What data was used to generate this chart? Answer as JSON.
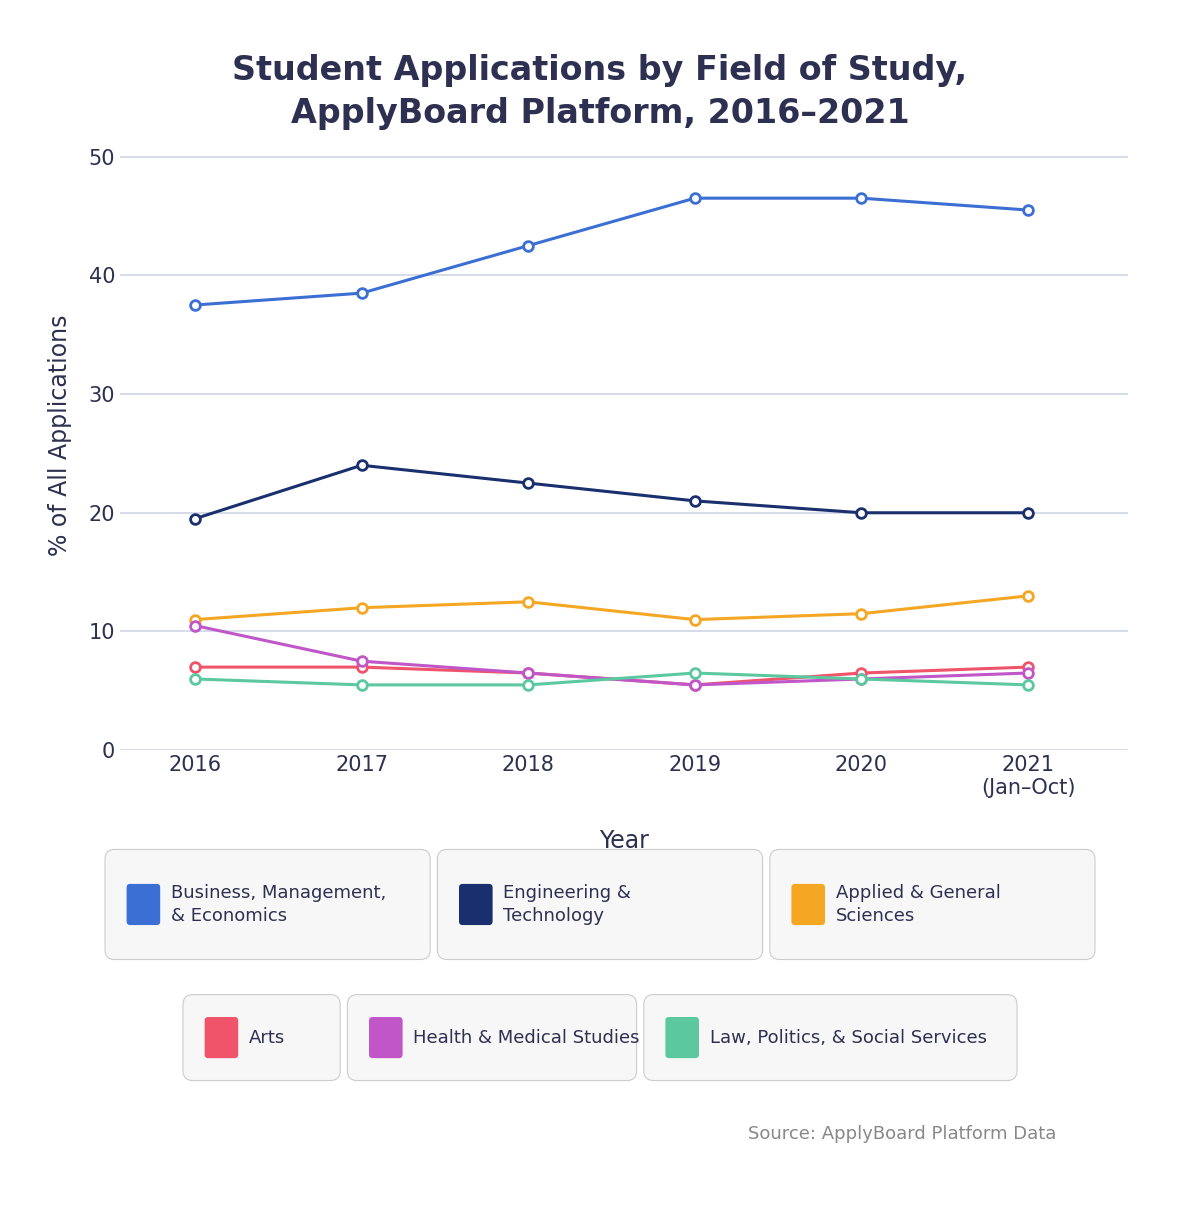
{
  "title": "Student Applications by Field of Study,\nApplyBoard Platform, 2016–2021",
  "years": [
    2016,
    2017,
    2018,
    2019,
    2020,
    2021
  ],
  "xlabel": "Year",
  "ylabel": "% of All Applications",
  "x_tick_labels": [
    "2016",
    "2017",
    "2018",
    "2019",
    "2020",
    "2021\n(Jan–Oct)"
  ],
  "ylim": [
    0,
    53
  ],
  "yticks": [
    0,
    10,
    20,
    30,
    40,
    50
  ],
  "source": "Source: ApplyBoard Platform Data",
  "series": [
    {
      "name": "Business, Management,\n& Economics",
      "values": [
        37.5,
        38.5,
        42.5,
        46.5,
        46.5,
        45.5
      ],
      "color": "#3b6fd4",
      "linewidth": 2.2,
      "markersize": 7,
      "markeredgewidth": 2.0
    },
    {
      "name": "Engineering &\nTechnology",
      "values": [
        19.5,
        24.0,
        22.5,
        21.0,
        20.0,
        20.0
      ],
      "color": "#1a2f6e",
      "linewidth": 2.2,
      "markersize": 7,
      "markeredgewidth": 2.0
    },
    {
      "name": "Applied & General\nSciences",
      "values": [
        11.0,
        12.0,
        12.5,
        11.0,
        11.5,
        13.0
      ],
      "color": "#f5a623",
      "linewidth": 2.2,
      "markersize": 7,
      "markeredgewidth": 2.0
    },
    {
      "name": "Arts",
      "values": [
        7.0,
        7.0,
        6.5,
        5.5,
        6.5,
        7.0
      ],
      "color": "#f0546a",
      "linewidth": 2.2,
      "markersize": 7,
      "markeredgewidth": 2.0
    },
    {
      "name": "Health & Medical Studies",
      "values": [
        10.5,
        7.5,
        6.5,
        5.5,
        6.0,
        6.5
      ],
      "color": "#c056c8",
      "linewidth": 2.2,
      "markersize": 7,
      "markeredgewidth": 2.0
    },
    {
      "name": "Law, Politics, & Social Services",
      "values": [
        6.0,
        5.5,
        5.5,
        6.5,
        6.0,
        5.5
      ],
      "color": "#5bc8a0",
      "linewidth": 2.2,
      "markersize": 7,
      "markeredgewidth": 2.0
    }
  ],
  "background_color": "#ffffff",
  "grid_color": "#d0d5e8",
  "title_color": "#2d3050",
  "axis_label_color": "#2d3050",
  "tick_label_color": "#2d3050",
  "source_color": "#888888",
  "title_fontsize": 24,
  "axis_label_fontsize": 17,
  "tick_fontsize": 15,
  "source_fontsize": 13,
  "legend_fontsize": 13,
  "legend_row1": [
    0,
    1,
    2
  ],
  "legend_row2": [
    3,
    4,
    5
  ],
  "legend_row1_labels": [
    "Business, Management,\n& Economics",
    "Engineering &\nTechnology",
    "Applied & General\nSciences"
  ],
  "legend_row2_labels": [
    "Arts",
    "Health & Medical Studies",
    "Law, Politics, & Social Services"
  ]
}
